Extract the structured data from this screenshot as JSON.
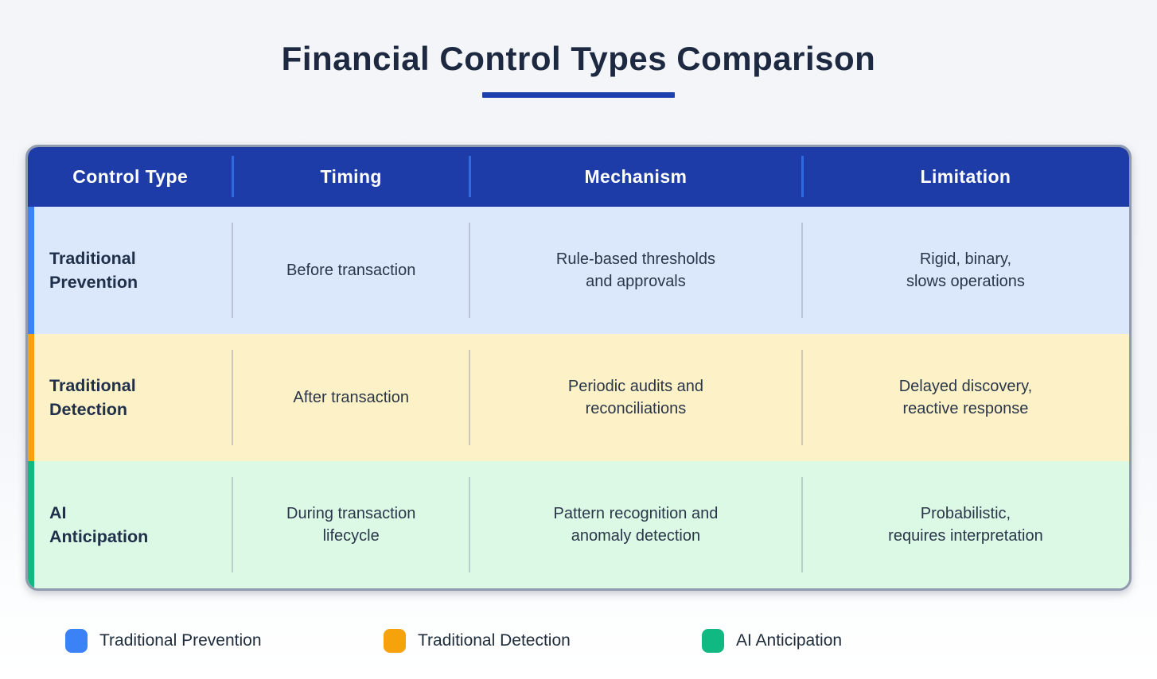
{
  "chart_data": {
    "type": "table",
    "title": "Financial Control Types Comparison",
    "columns": [
      "Control Type",
      "Timing",
      "Mechanism",
      "Limitation"
    ],
    "rows": [
      {
        "control_type": "Traditional\nPrevention",
        "timing": "Before transaction",
        "mechanism": "Rule-based thresholds\nand approvals",
        "limitation": "Rigid, binary,\nslows operations",
        "accent_color": "#3b82f6",
        "row_color": "#dbe7fb"
      },
      {
        "control_type": "Traditional\nDetection",
        "timing": "After transaction",
        "mechanism": "Periodic audits and\nreconciliations",
        "limitation": "Delayed discovery,\nreactive response",
        "accent_color": "#f5a20b",
        "row_color": "#fdf1c7"
      },
      {
        "control_type": "AI\nAnticipation",
        "timing": "During transaction\nlifecycle",
        "mechanism": "Pattern recognition and\nanomaly detection",
        "limitation": "Probabilistic,\nrequires interpretation",
        "accent_color": "#10b981",
        "row_color": "#dcf9e6"
      }
    ],
    "legend": [
      {
        "label": "Traditional Prevention",
        "color": "#3b82f6"
      },
      {
        "label": "Traditional Detection",
        "color": "#f5a20b"
      },
      {
        "label": "AI Anticipation",
        "color": "#10b981"
      }
    ],
    "layout": {
      "legend_position": "bottom",
      "grid": "off"
    }
  },
  "colors": {
    "header_bg": "#1e3ca8",
    "header_divider": "#2e6be2",
    "title_underline": "#1e3fae",
    "table_border": "#8f9aad",
    "title_text": "#1c2940"
  }
}
